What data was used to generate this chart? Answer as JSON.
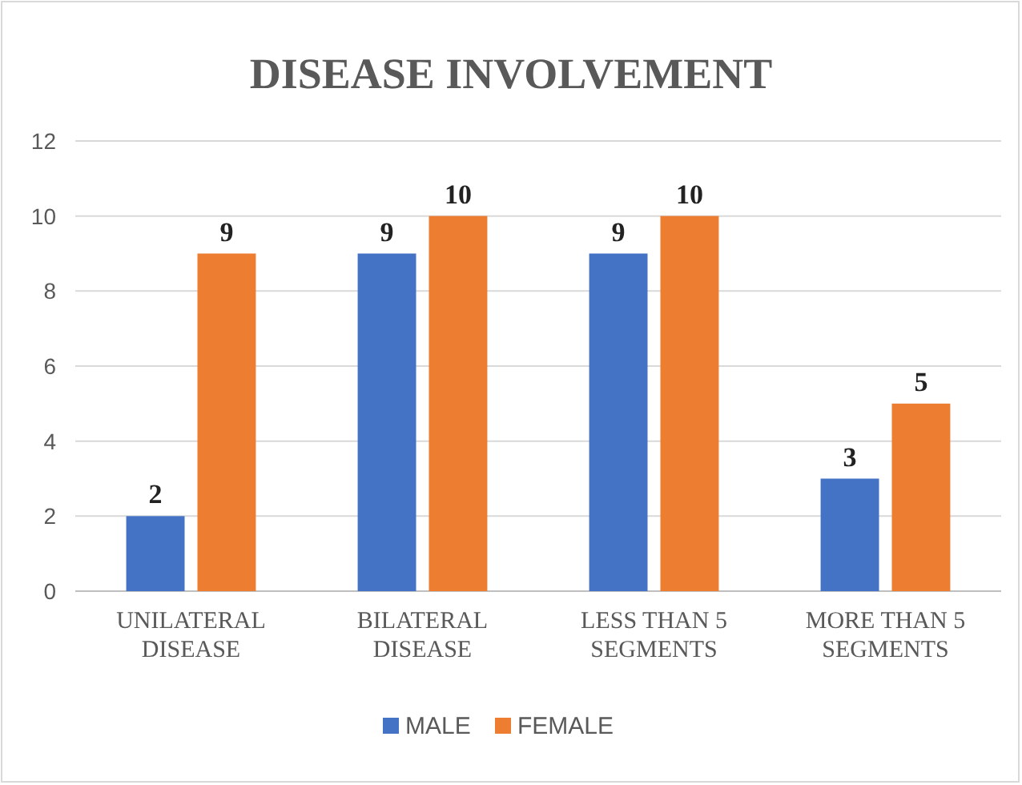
{
  "chart_data": {
    "type": "bar",
    "title": "DISEASE INVOLVEMENT",
    "categories": [
      "UNILATERAL DISEASE",
      "BILATERAL DISEASE",
      "LESS THAN 5 SEGMENTS",
      "MORE THAN 5 SEGMENTS"
    ],
    "series": [
      {
        "name": "MALE",
        "color": "#4472c4",
        "values": [
          2,
          9,
          9,
          3
        ]
      },
      {
        "name": "FEMALE",
        "color": "#ed7d31",
        "values": [
          9,
          10,
          10,
          5
        ]
      }
    ],
    "ylim": [
      0,
      12
    ],
    "yticks": [
      0,
      2,
      4,
      6,
      8,
      10,
      12
    ],
    "grid": "y",
    "data_labels": true,
    "legend": "bottom"
  }
}
